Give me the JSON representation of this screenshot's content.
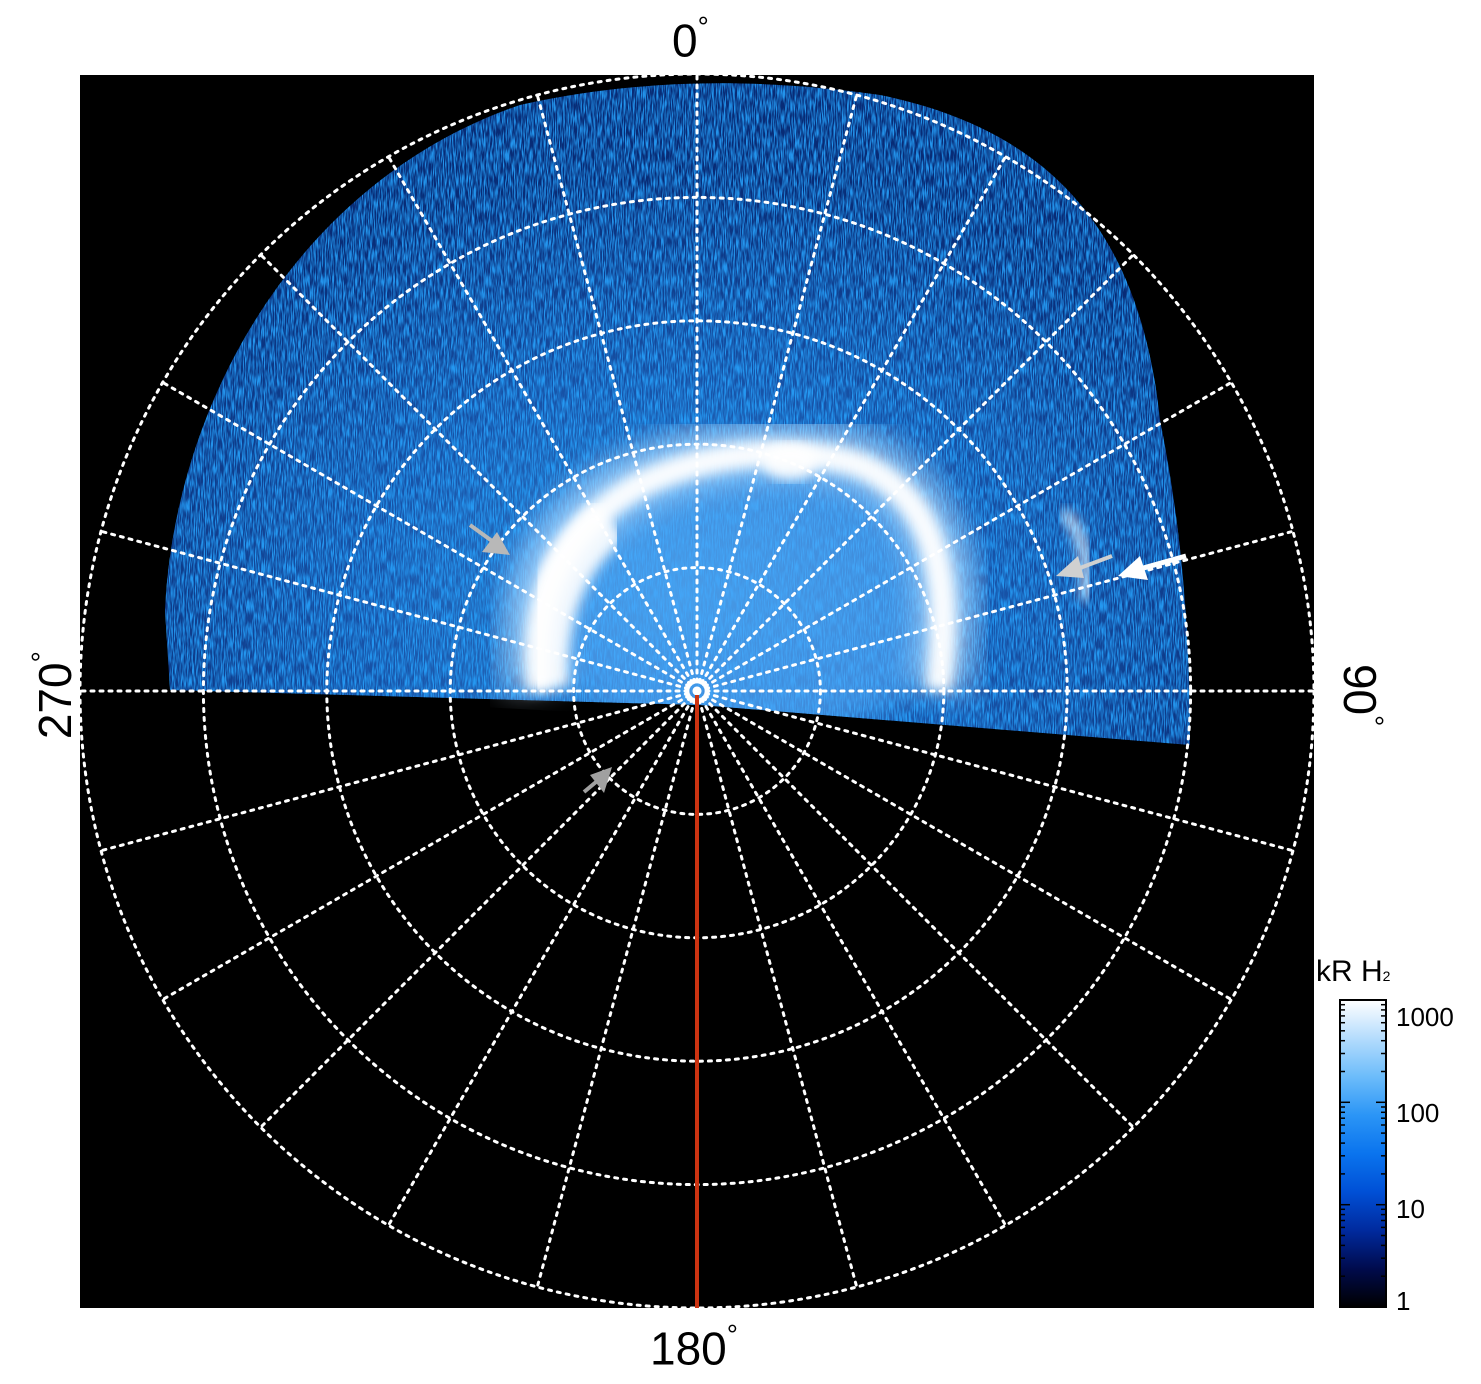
{
  "azimuth_labels": {
    "top": "0",
    "right": "90",
    "bottom": "180",
    "left": "270",
    "degree_symbol": "°"
  },
  "colorbar": {
    "title_main": "kR H",
    "title_sub": "2",
    "ticks": [
      "1000",
      "100",
      "10",
      "1"
    ],
    "colors": [
      "#000000",
      "#000b4d",
      "#002a9e",
      "#0050d6",
      "#0a74ee",
      "#2b95f6",
      "#6cbcfa",
      "#b4dcfd",
      "#ffffff"
    ]
  },
  "colors": {
    "background": "#000000",
    "grid": "#ffffff",
    "meridian_line": "#cc3311",
    "arrow_gray": "#b0b0b0",
    "arrow_white": "#ffffff"
  }
}
